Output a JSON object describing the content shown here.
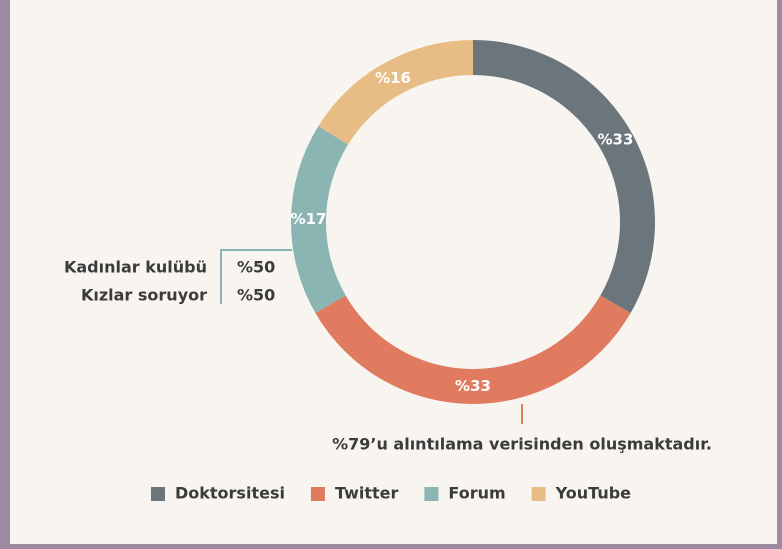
{
  "chart_data": {
    "type": "donut",
    "categories": [
      "Doktorsitesi",
      "Twitter",
      "Forum",
      "YouTube"
    ],
    "values": [
      33,
      33,
      17,
      16
    ],
    "value_labels": [
      "%33",
      "%33",
      "%17",
      "%16"
    ],
    "colors": [
      "#6b767c",
      "#e07b60",
      "#8ab5b2",
      "#e8bd85"
    ],
    "legend": "bottom",
    "breakdown": {
      "categories": [
        "Kadınlar kulübü",
        "Kızlar soruyor"
      ],
      "values": [
        50,
        50
      ],
      "value_labels": [
        "%50",
        "%50"
      ]
    },
    "note": "%79’u alıntılama verisinden oluşmaktadır."
  }
}
